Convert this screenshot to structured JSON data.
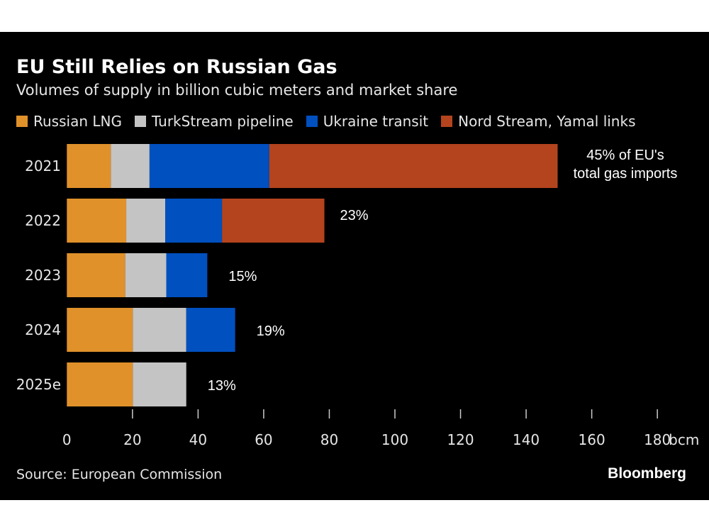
{
  "chart_data": {
    "type": "bar",
    "orientation": "horizontal",
    "stacked": true,
    "title": "EU Still Relies on Russian Gas",
    "subtitle": "Volumes of supply in billion cubic meters and market share",
    "categories": [
      "2021",
      "2022",
      "2023",
      "2024",
      "2025e"
    ],
    "series": [
      {
        "name": "Russian LNG",
        "color": "#E0912A",
        "values": [
          13.4,
          18.1,
          17.8,
          20.1,
          20.1
        ]
      },
      {
        "name": "TurkStream pipeline",
        "color": "#C4C4C4",
        "values": [
          11.8,
          11.9,
          12.5,
          16.3,
          16.3
        ]
      },
      {
        "name": "Ukraine transit",
        "color": "#0050C0",
        "values": [
          36.5,
          17.3,
          12.5,
          14.9,
          0
        ]
      },
      {
        "name": "Nord Stream, Yamal links",
        "color": "#B4441E",
        "values": [
          87.9,
          31.2,
          0,
          0,
          0
        ]
      }
    ],
    "annotations": [
      "45% of EU's\ntotal gas imports",
      "23%",
      "15%",
      "19%",
      "13%"
    ],
    "xlim": [
      0,
      180
    ],
    "xticks": [
      "0",
      "20",
      "40",
      "60",
      "80",
      "100",
      "120",
      "140",
      "160",
      "180"
    ],
    "xunit": "bcm",
    "grid": false,
    "legend": "top"
  },
  "source": "Source: European Commission",
  "brand": "Bloomberg"
}
